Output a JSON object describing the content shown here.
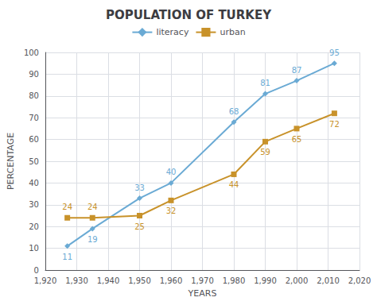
{
  "chart_data": {
    "type": "line",
    "title": "POPULATION OF TURKEY",
    "xlabel": "YEARS",
    "ylabel": "PERCENTAGE",
    "x": [
      1927,
      1935,
      1950,
      1960,
      1980,
      1990,
      2000,
      2012
    ],
    "series": [
      {
        "name": "literacy",
        "color": "#6aaad4",
        "marker": "diamond",
        "values": [
          11,
          19,
          33,
          40,
          68,
          81,
          87,
          95
        ]
      },
      {
        "name": "urban",
        "color": "#c8922a",
        "marker": "square",
        "values": [
          24,
          24,
          25,
          32,
          44,
          59,
          65,
          72
        ]
      }
    ],
    "xlim": [
      1920,
      2020
    ],
    "ylim": [
      0,
      100
    ],
    "xticks": [
      1920,
      1930,
      1940,
      1950,
      1960,
      1970,
      1980,
      1990,
      2000,
      2010,
      2020
    ],
    "yticks": [
      0,
      10,
      20,
      30,
      40,
      50,
      60,
      70,
      80,
      90,
      100
    ],
    "grid": true,
    "legend": "top",
    "data_labels": true
  }
}
